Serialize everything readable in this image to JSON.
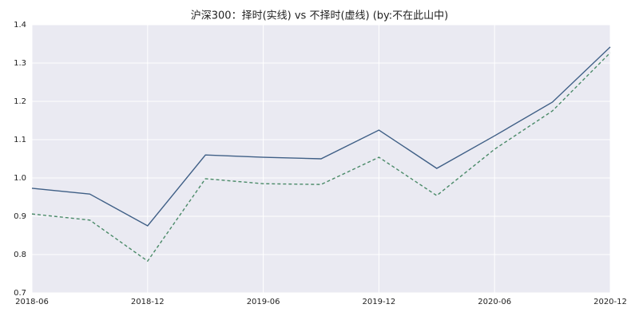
{
  "chart_data": {
    "type": "line",
    "title": "沪深300：择时(实线)  vs  不择时(虚线)  (by:不在此山中)",
    "x": [
      "2018-06",
      "2018-09",
      "2018-12",
      "2019-03",
      "2019-06",
      "2019-09",
      "2019-12",
      "2020-03",
      "2020-06",
      "2020-09",
      "2020-12"
    ],
    "xlim": [
      "2018-06",
      "2020-12"
    ],
    "xticks": [
      "2018-06",
      "2018-12",
      "2019-06",
      "2019-12",
      "2020-06",
      "2020-12"
    ],
    "ylim": [
      0.7,
      1.4
    ],
    "yticks": [
      0.7,
      0.8,
      0.9,
      {
        "value": 1,
        "label": "1.0"
      },
      1.1,
      1.2,
      1.3,
      1.4
    ],
    "grid": true,
    "series": [
      {
        "color": "#3f5f86",
        "dash": false,
        "values": [
          0.973,
          0.958,
          0.875,
          1.06,
          1.054,
          1.05,
          1.125,
          1.025,
          1.11,
          1.198,
          1.342
        ]
      },
      {
        "color": "#4a8a68",
        "dash": true,
        "values": [
          0.906,
          0.89,
          0.783,
          0.998,
          0.985,
          0.983,
          1.054,
          0.954,
          1.075,
          1.175,
          1.327
        ]
      }
    ]
  }
}
